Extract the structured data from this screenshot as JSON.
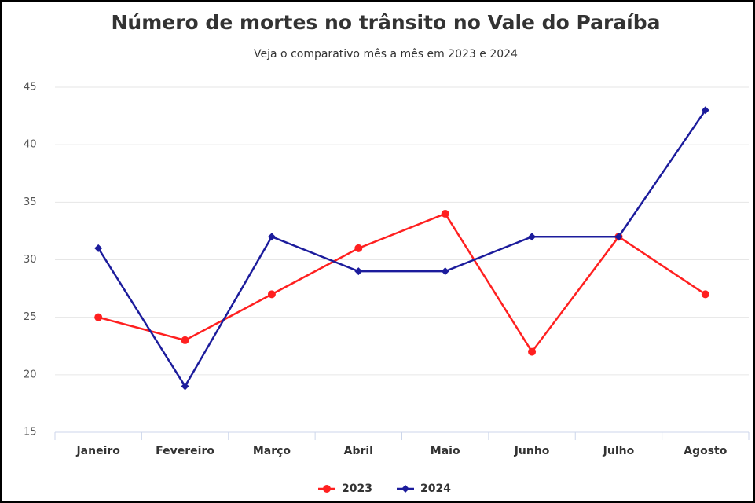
{
  "chart_data": {
    "type": "line",
    "title": "Número de mortes no trânsito no Vale do Paraíba",
    "subtitle": "Veja o comparativo mês a mês em 2023 e 2024",
    "categories": [
      "Janeiro",
      "Fevereiro",
      "Março",
      "Abril",
      "Maio",
      "Junho",
      "Julho",
      "Agosto"
    ],
    "series": [
      {
        "name": "2023",
        "color": "#ff2020",
        "marker": "circle",
        "values": [
          25,
          23,
          27,
          31,
          34,
          22,
          32,
          27
        ]
      },
      {
        "name": "2024",
        "color": "#1c1c9c",
        "marker": "diamond",
        "values": [
          31,
          19,
          32,
          29,
          29,
          32,
          32,
          43
        ]
      }
    ],
    "ylim": [
      15,
      45
    ],
    "yticks": [
      15,
      20,
      25,
      30,
      35,
      40,
      45
    ],
    "grid": true,
    "legend": "bottom"
  }
}
